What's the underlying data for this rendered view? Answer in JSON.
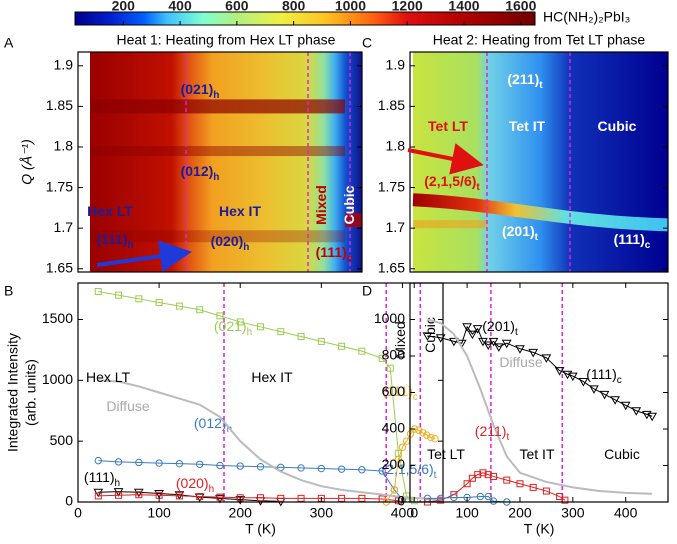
{
  "chart_data": [
    {
      "type": "colorbar",
      "label": "HC(NH₂)₂PbI₃",
      "clim": [
        30,
        1650
      ],
      "ticks": [
        200,
        400,
        600,
        800,
        1000,
        1200,
        1400,
        1600
      ]
    },
    {
      "type": "heatmap",
      "panel_label": "A",
      "title": "Heat 1: Heating from Hex LT phase",
      "ylabel": "Q (Å⁻¹)",
      "ylim": [
        1.646,
        1.917
      ],
      "yticks": [
        1.65,
        1.7,
        1.75,
        1.8,
        1.85,
        1.9
      ],
      "annotations": [
        {
          "text": "(021)",
          "sub": "h",
          "color": "#1c1ca0"
        },
        {
          "text": "(012)",
          "sub": "h",
          "color": "#1c1ca0"
        },
        {
          "text": "Hex LT",
          "color": "#1c1ca0"
        },
        {
          "text": "Hex IT",
          "color": "#1c1ca0"
        },
        {
          "text": "(111)",
          "sub": "h",
          "color": "#1c1ca0"
        },
        {
          "text": "(020)",
          "sub": "h",
          "color": "#1c1ca0"
        },
        {
          "text": "Mixed",
          "color": "#c00000"
        },
        {
          "text": "Cubic",
          "color": "#ffffff"
        },
        {
          "text": "(111)",
          "sub": "c",
          "color": "#c00000"
        }
      ]
    },
    {
      "type": "line",
      "panel_label": "B",
      "xlabel": "T (K)",
      "ylabel": [
        "Integrated Intensity",
        "(arb. units)"
      ],
      "xlim": [
        0,
        450
      ],
      "xticks": [
        0,
        100,
        200,
        300,
        400
      ],
      "ylim": [
        0,
        1800
      ],
      "yticks": [
        0,
        500,
        1000,
        1500
      ],
      "vlines": [
        180,
        380,
        422
      ],
      "series": [
        {
          "name": "(021)",
          "name_sub": "h",
          "color": "#9acd50",
          "marker": "square",
          "x": [
            25,
            50,
            75,
            100,
            125,
            150,
            175,
            200,
            225,
            250,
            275,
            300,
            325,
            350,
            375,
            385,
            395,
            405,
            415
          ],
          "values": [
            1730,
            1700,
            1670,
            1640,
            1610,
            1580,
            1530,
            1480,
            1440,
            1400,
            1360,
            1320,
            1280,
            1240,
            1180,
            1100,
            400,
            50,
            10
          ]
        },
        {
          "name": "(012)",
          "name_sub": "h",
          "color": "#3a7cc0",
          "marker": "circle",
          "x": [
            25,
            50,
            75,
            100,
            125,
            150,
            175,
            200,
            225,
            250,
            275,
            300,
            325,
            350,
            375,
            390,
            400
          ],
          "values": [
            340,
            330,
            325,
            320,
            315,
            310,
            300,
            295,
            290,
            285,
            280,
            275,
            270,
            265,
            255,
            100,
            20
          ]
        },
        {
          "name": "(111)",
          "name_sub": "h",
          "color": "#000000",
          "marker": "triangle",
          "x": [
            25,
            50,
            75,
            100,
            125,
            150,
            175,
            200,
            225,
            250
          ],
          "values": [
            80,
            85,
            80,
            70,
            60,
            40,
            30,
            20,
            10,
            5
          ]
        },
        {
          "name": "(020)",
          "name_sub": "h",
          "color": "#e02020",
          "marker": "square",
          "x": [
            25,
            50,
            75,
            100,
            125,
            150,
            175,
            200,
            225,
            250,
            275,
            300,
            325,
            350,
            375,
            395
          ],
          "values": [
            50,
            55,
            60,
            55,
            50,
            45,
            40,
            35,
            35,
            30,
            30,
            30,
            30,
            30,
            25,
            10
          ]
        },
        {
          "name": "(111)",
          "name_sub": "c",
          "color": "#f0b020",
          "marker": "circle",
          "x": [
            380,
            390,
            395,
            400,
            405,
            410,
            415,
            420,
            425,
            430,
            435,
            440
          ],
          "values": [
            0,
            100,
            350,
            450,
            500,
            560,
            600,
            590,
            570,
            550,
            530,
            520
          ]
        },
        {
          "name": "Diffuse",
          "color": "#bbbbbb",
          "marker": "none",
          "x": [
            25,
            50,
            75,
            100,
            125,
            150,
            175,
            200,
            225,
            250,
            275,
            300,
            325,
            350,
            375,
            400,
            425,
            450
          ],
          "values": [
            1000,
            990,
            950,
            900,
            850,
            800,
            700,
            500,
            350,
            250,
            180,
            130,
            100,
            80,
            60,
            40,
            30,
            20
          ]
        }
      ],
      "annotations": [
        {
          "text": "Hex LT"
        },
        {
          "text": "Hex IT"
        },
        {
          "text": "Mixed"
        },
        {
          "text": "Cubic"
        }
      ]
    },
    {
      "type": "heatmap",
      "panel_label": "C",
      "title": "Heat 2: Heating from Tet LT phase",
      "ylim": [
        1.646,
        1.917
      ],
      "yticks": [
        1.65,
        1.7,
        1.75,
        1.8,
        1.85,
        1.9
      ],
      "annotations": [
        {
          "text": "(211)",
          "sub": "t",
          "color": "#ffffff"
        },
        {
          "text": "Tet LT",
          "color": "#e01010"
        },
        {
          "text": "Tet IT",
          "color": "#ffffff"
        },
        {
          "text": "Cubic",
          "color": "#ffffff"
        },
        {
          "text": "(2,1,5/6)",
          "sub": "t",
          "color": "#e01010"
        },
        {
          "text": "(201)",
          "sub": "t",
          "color": "#ffffff"
        },
        {
          "text": "(111)",
          "sub": "c",
          "color": "#ffffff"
        }
      ]
    },
    {
      "type": "line",
      "panel_label": "D",
      "xlabel": "T (K)",
      "xlim": [
        -8,
        480
      ],
      "xticks": [
        0,
        100,
        200,
        300,
        400
      ],
      "ylim": [
        0,
        1200
      ],
      "yticks": [
        0,
        200,
        400,
        600,
        800,
        1000
      ],
      "vlines": [
        145,
        280
      ],
      "series": [
        {
          "name": "(201)",
          "name_sub": "t",
          "color": "#000000",
          "marker": "triangle",
          "x": [
            25,
            50,
            75,
            90,
            100,
            110,
            120,
            130,
            140,
            150,
            160,
            175,
            200,
            225,
            250,
            275,
            290,
            300,
            320,
            340,
            360,
            380,
            400,
            420,
            440,
            450
          ],
          "values": [
            910,
            900,
            880,
            870,
            960,
            920,
            950,
            880,
            860,
            880,
            850,
            870,
            840,
            820,
            790,
            720,
            700,
            690,
            660,
            620,
            590,
            560,
            530,
            500,
            480,
            470
          ]
        },
        {
          "name": "Diffuse",
          "color": "#bbbbbb",
          "marker": "none",
          "x": [
            25,
            50,
            75,
            100,
            125,
            150,
            175,
            200,
            250,
            300,
            350,
            400,
            450
          ],
          "values": [
            1000,
            980,
            920,
            800,
            620,
            420,
            250,
            160,
            110,
            80,
            60,
            50,
            45
          ]
        },
        {
          "name": "(211)",
          "name_sub": "t",
          "color": "#e02020",
          "marker": "square",
          "x": [
            25,
            50,
            75,
            100,
            110,
            120,
            130,
            140,
            150,
            175,
            200,
            225,
            250,
            275,
            285
          ],
          "values": [
            0,
            10,
            40,
            100,
            130,
            150,
            160,
            150,
            140,
            120,
            100,
            80,
            60,
            30,
            10
          ]
        },
        {
          "name": "(2,1,5/6)",
          "name_sub": "t",
          "color": "#3a7cc0",
          "marker": "circle",
          "x": [
            25,
            50,
            75,
            100,
            125,
            140,
            150,
            175
          ],
          "values": [
            20,
            20,
            25,
            25,
            30,
            30,
            5,
            0
          ]
        }
      ],
      "annotations": [
        {
          "text": "Tet LT"
        },
        {
          "text": "Tet IT"
        },
        {
          "text": "Cubic"
        },
        {
          "text": "(111)",
          "sub": "c"
        }
      ]
    }
  ]
}
